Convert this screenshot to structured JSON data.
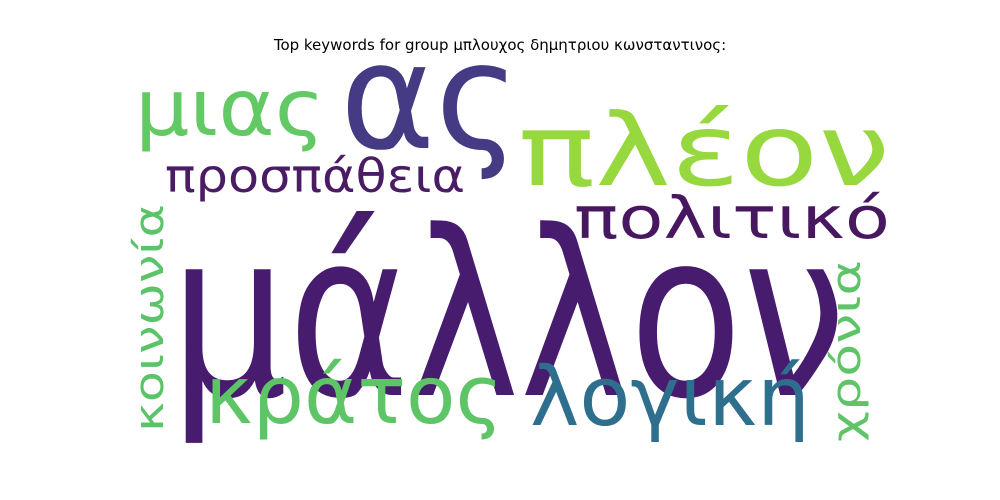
{
  "chart_data": {
    "type": "wordcloud",
    "title": "Top keywords for group μπλουχος δημητριου κωνσταντινος:",
    "words": [
      {
        "text": "μάλλον",
        "rank": 1,
        "color": "#471b6e"
      },
      {
        "text": "ας",
        "rank": 2,
        "color": "#453a84"
      },
      {
        "text": "πλέον",
        "rank": 3,
        "color": "#97d83e"
      },
      {
        "text": "λογική",
        "rank": 4,
        "color": "#2f6f8e"
      },
      {
        "text": "κράτος",
        "rank": 5,
        "color": "#5ec566"
      },
      {
        "text": "μιας",
        "rank": 6,
        "color": "#62c964"
      },
      {
        "text": "πολιτικό",
        "rank": 7,
        "color": "#47175f"
      },
      {
        "text": "προσπάθεια",
        "rank": 8,
        "color": "#4a1c63"
      },
      {
        "text": "κοινωνία",
        "rank": 9,
        "color": "#5bc468"
      },
      {
        "text": "χρόνια",
        "rank": 10,
        "color": "#5ec467"
      }
    ]
  }
}
